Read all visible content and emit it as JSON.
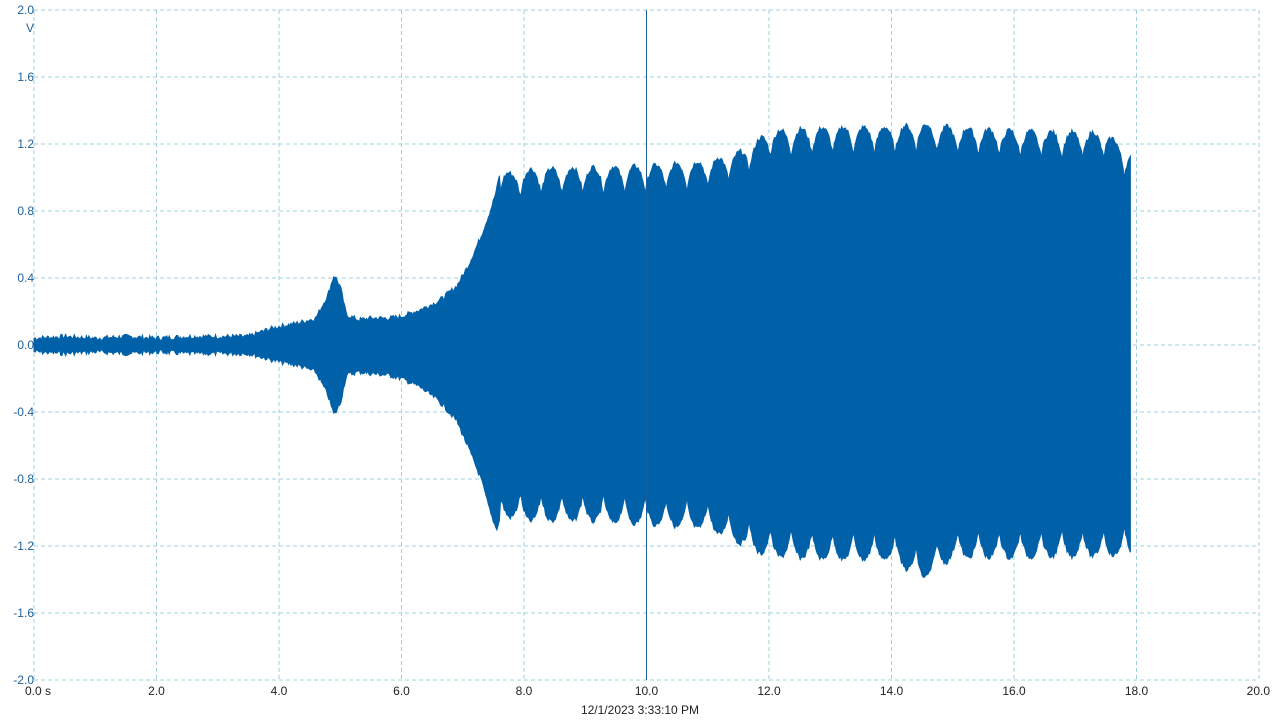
{
  "chart_data": {
    "type": "area",
    "title": "",
    "xlabel": "",
    "ylabel": "",
    "y_unit": "V",
    "x_unit": "s",
    "capture_time": "12/1/2023 3:33:10 PM",
    "xlim": [
      0,
      20
    ],
    "ylim": [
      -2,
      2
    ],
    "x_ticks": [
      "0.0 s",
      "2.0",
      "4.0",
      "6.0",
      "8.0",
      "10.0",
      "12.0",
      "14.0",
      "16.0",
      "18.0",
      "20.0"
    ],
    "y_ticks": [
      "2.0",
      "1.6",
      "1.2",
      "0.8",
      "0.4",
      "0.0",
      "-0.4",
      "-0.8",
      "-1.2",
      "-1.6",
      "-2.0"
    ],
    "grid": true,
    "cursor_x": 10.0,
    "series": [
      {
        "color": "#0060a8",
        "envelope_x": [
          0,
          0.5,
          1,
          1.5,
          2,
          2.5,
          3,
          3.5,
          3.8,
          4.0,
          4.3,
          4.6,
          4.8,
          4.9,
          5.0,
          5.1,
          5.3,
          5.5,
          5.8,
          6.0,
          6.3,
          6.6,
          6.9,
          7.1,
          7.3,
          7.45,
          7.55,
          7.6,
          7.65,
          7.8,
          8.0,
          9.0,
          10.0,
          11.0,
          11.5,
          11.8,
          12.0,
          13.0,
          14.0,
          14.5,
          15.0,
          16.0,
          17.0,
          17.5,
          17.9
        ],
        "envelope_max": [
          0.04,
          0.05,
          0.04,
          0.05,
          0.04,
          0.05,
          0.05,
          0.05,
          0.09,
          0.11,
          0.13,
          0.16,
          0.3,
          0.42,
          0.35,
          0.18,
          0.15,
          0.16,
          0.16,
          0.17,
          0.21,
          0.26,
          0.35,
          0.48,
          0.65,
          0.8,
          0.92,
          1.02,
          1.05,
          1.02,
          1.05,
          1.06,
          1.07,
          1.1,
          1.15,
          1.22,
          1.28,
          1.3,
          1.3,
          1.32,
          1.3,
          1.28,
          1.27,
          1.27,
          1.14
        ],
        "envelope_min": [
          -0.04,
          -0.05,
          -0.04,
          -0.05,
          -0.04,
          -0.05,
          -0.05,
          -0.05,
          -0.08,
          -0.1,
          -0.12,
          -0.16,
          -0.3,
          -0.42,
          -0.35,
          -0.18,
          -0.16,
          -0.17,
          -0.18,
          -0.2,
          -0.25,
          -0.33,
          -0.45,
          -0.62,
          -0.8,
          -1.0,
          -1.1,
          -1.05,
          -1.02,
          -1.03,
          -1.05,
          -1.05,
          -1.07,
          -1.1,
          -1.18,
          -1.24,
          -1.26,
          -1.28,
          -1.28,
          -1.4,
          -1.27,
          -1.27,
          -1.26,
          -1.26,
          -1.25
        ],
        "ripple_period": 0.34,
        "ripple_depth": 0.17,
        "ripple_start": 7.6
      }
    ]
  }
}
